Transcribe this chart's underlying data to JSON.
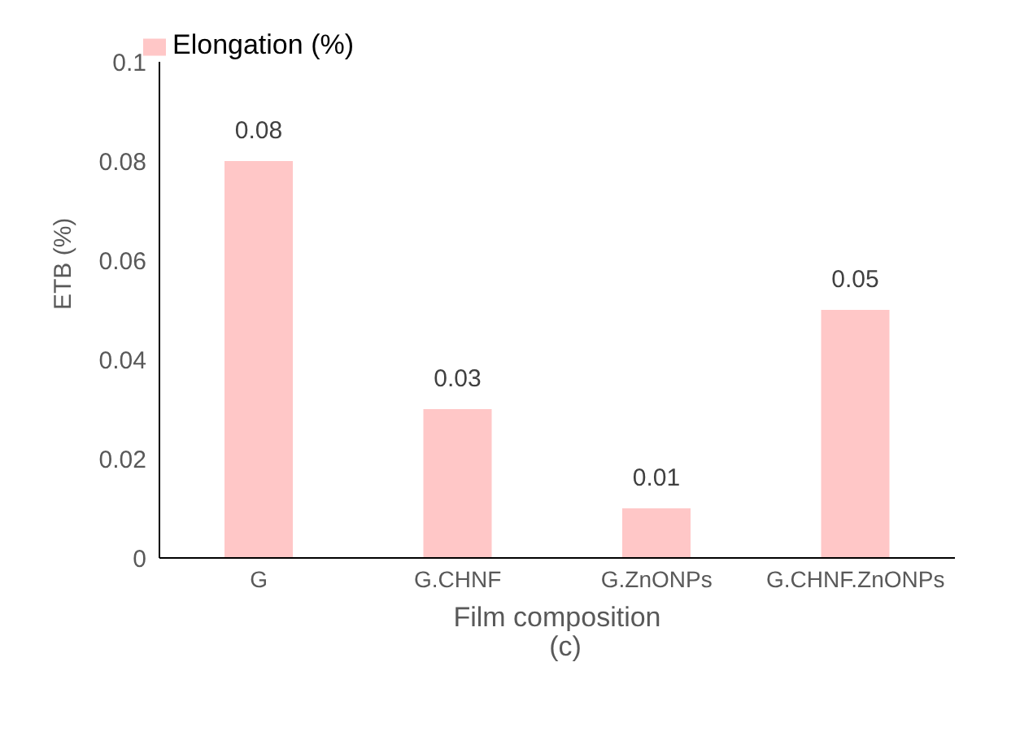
{
  "chart_data": {
    "type": "bar",
    "xlabel": "Film composition",
    "ylabel": "ETB (%)",
    "annotations": [
      "(c)"
    ],
    "categories": [
      "G",
      "G.CHNF",
      "G.ZnONPs",
      "G.CHNF.ZnONPs"
    ],
    "series": [
      {
        "name": "Elongation (%)",
        "color": "#ffc7c7",
        "values": [
          0.08,
          0.03,
          0.01,
          0.05
        ]
      }
    ],
    "ylim": [
      0,
      0.1
    ],
    "yticks": [
      0,
      0.02,
      0.04,
      0.06,
      0.08,
      0.1
    ],
    "grid": false,
    "legend": "top",
    "data_labels": true
  }
}
